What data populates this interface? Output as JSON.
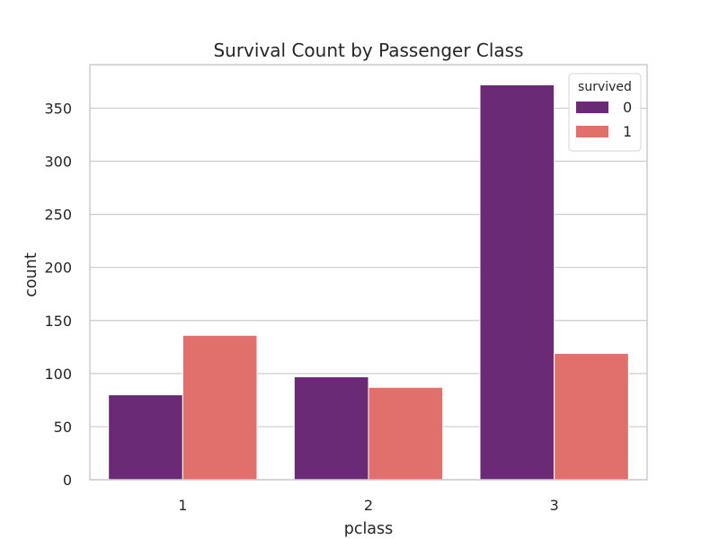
{
  "chart_data": {
    "type": "bar",
    "title": "Survival Count by Passenger Class",
    "xlabel": "pclass",
    "ylabel": "count",
    "categories": [
      "1",
      "2",
      "3"
    ],
    "series": [
      {
        "name": "0",
        "values": [
          80,
          97,
          372
        ],
        "color": "#6b2a75"
      },
      {
        "name": "1",
        "values": [
          136,
          87,
          119
        ],
        "color": "#e1706d"
      }
    ],
    "ylim": [
      0,
      391
    ],
    "yticks": [
      0,
      50,
      100,
      150,
      200,
      250,
      300,
      350
    ],
    "grid": "horizontal",
    "legend": {
      "title": "survived",
      "placement": "top-right"
    }
  }
}
